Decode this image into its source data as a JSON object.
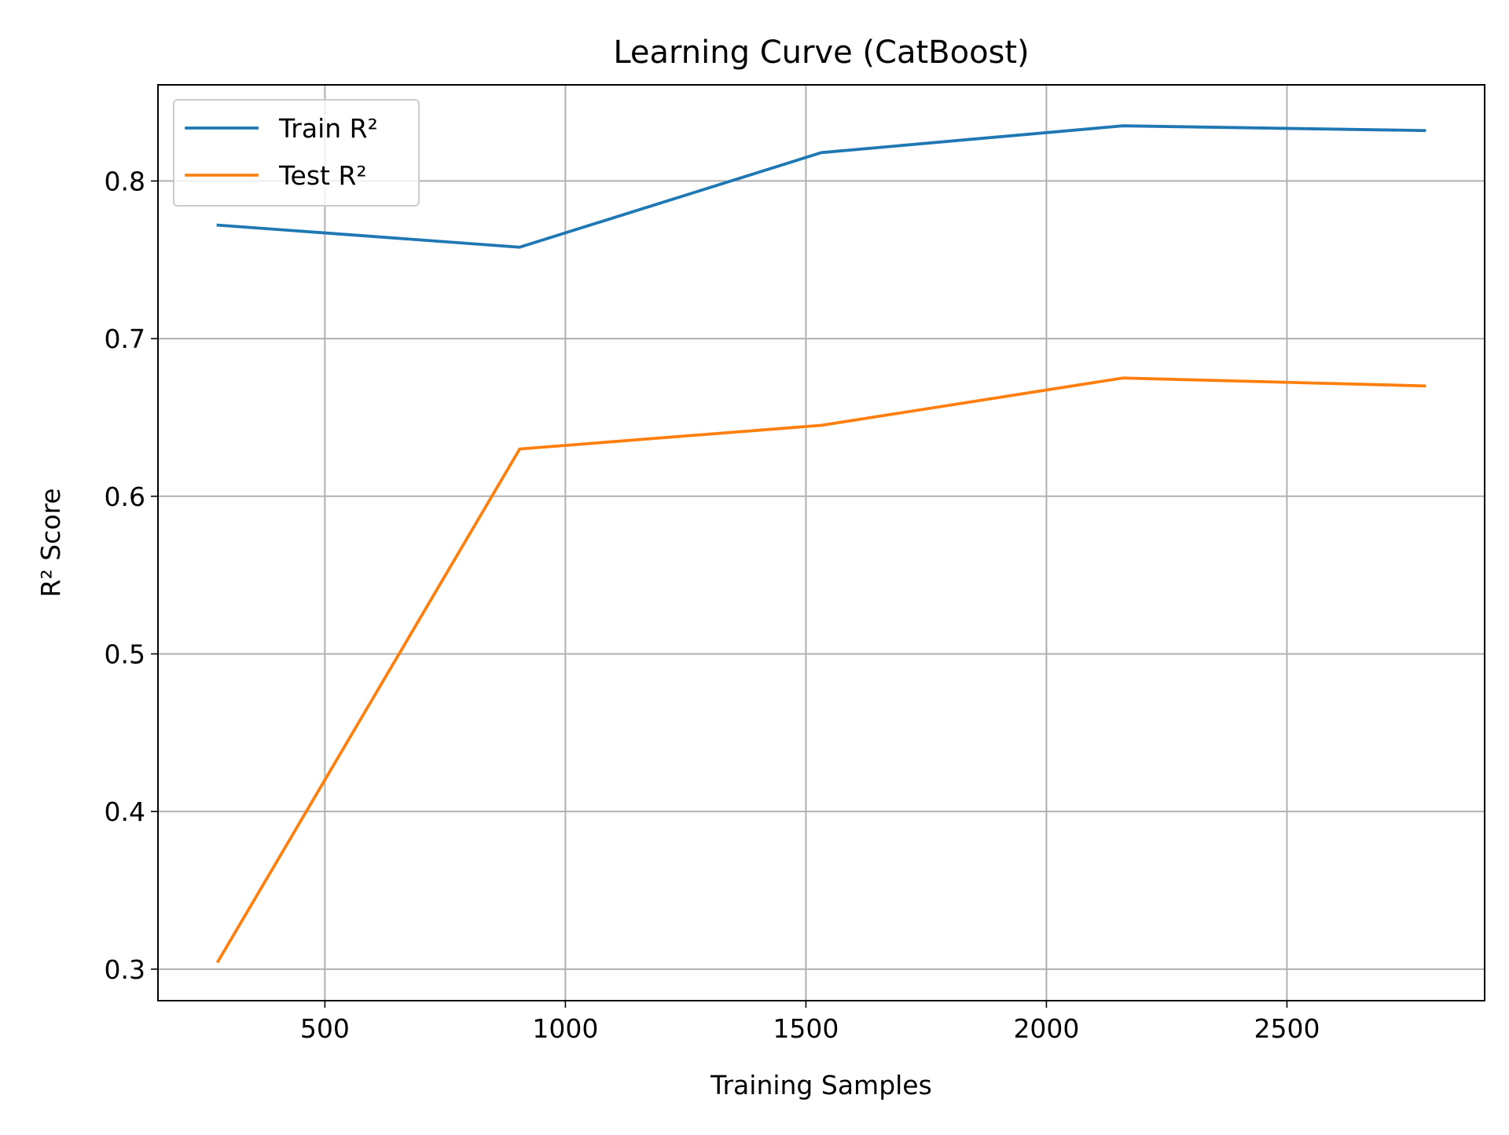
{
  "chart_data": {
    "type": "line",
    "title": "Learning Curve (CatBoost)",
    "xlabel": "Training Samples",
    "ylabel": "R² Score",
    "x": [
      278,
      905,
      1532,
      2159,
      2786
    ],
    "xlim": [
      153,
      2911
    ],
    "ylim": [
      0.28,
      0.861
    ],
    "x_ticks": [
      500,
      1000,
      1500,
      2000,
      2500
    ],
    "x_tick_labels": [
      "500",
      "1000",
      "1500",
      "2000",
      "2500"
    ],
    "y_ticks": [
      0.3,
      0.4,
      0.5,
      0.6,
      0.7,
      0.8
    ],
    "y_tick_labels": [
      "0.3",
      "0.4",
      "0.5",
      "0.6",
      "0.7",
      "0.8"
    ],
    "grid": true,
    "legend_position": "upper-left",
    "series": [
      {
        "name": "Train R²",
        "color": "#1f77b4",
        "values": [
          0.772,
          0.758,
          0.818,
          0.835,
          0.832
        ]
      },
      {
        "name": "Test R²",
        "color": "#ff7f0e",
        "values": [
          0.305,
          0.63,
          0.645,
          0.675,
          0.67
        ]
      }
    ]
  }
}
